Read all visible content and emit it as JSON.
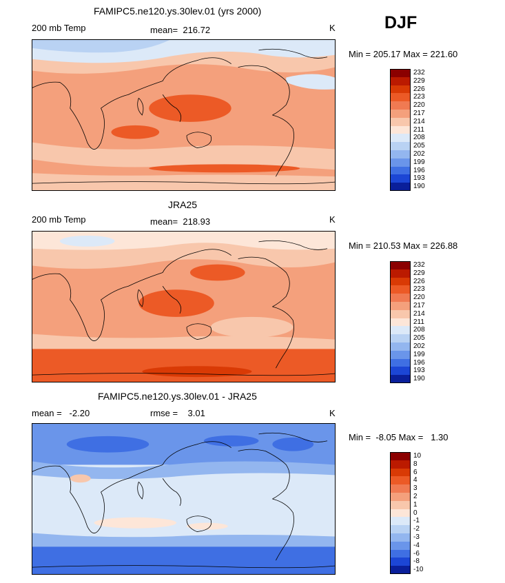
{
  "season": "DJF",
  "panels": [
    {
      "title": "FAMIPC5.ne120.ys.30lev.01 (yrs 2000)",
      "left_label": "200 mb Temp",
      "center_label": "mean=  216.72",
      "units": "K",
      "minmax": "Min = 205.17 Max = 221.60",
      "colorbar": {
        "labels": [
          "232",
          "229",
          "226",
          "223",
          "220",
          "217",
          "214",
          "211",
          "208",
          "205",
          "202",
          "199",
          "196",
          "193",
          "190"
        ],
        "colors": [
          "#8b0000",
          "#bb1a00",
          "#d93a05",
          "#ec5a26",
          "#f07a52",
          "#f4a07c",
          "#f8c7ac",
          "#fde6d8",
          "#dce9f8",
          "#b9d2f3",
          "#93b6ef",
          "#6a95ea",
          "#3f6fe3",
          "#1c46d5",
          "#0a1f9a"
        ]
      }
    },
    {
      "title": "JRA25",
      "left_label": "200 mb Temp",
      "center_label": "mean=  218.93",
      "units": "K",
      "minmax": "Min = 210.53 Max = 226.88",
      "colorbar": {
        "labels": [
          "232",
          "229",
          "226",
          "223",
          "220",
          "217",
          "214",
          "211",
          "208",
          "205",
          "202",
          "199",
          "196",
          "193",
          "190"
        ],
        "colors": [
          "#8b0000",
          "#bb1a00",
          "#d93a05",
          "#ec5a26",
          "#f07a52",
          "#f4a07c",
          "#f8c7ac",
          "#fde6d8",
          "#dce9f8",
          "#b9d2f3",
          "#93b6ef",
          "#6a95ea",
          "#3f6fe3",
          "#1c46d5",
          "#0a1f9a"
        ]
      }
    },
    {
      "title": "FAMIPC5.ne120.ys.30lev.01 - JRA25",
      "left_label": "mean =   -2.20",
      "center_label": "rmse =    3.01",
      "units": "K",
      "minmax": "Min =  -8.05 Max =   1.30",
      "colorbar": {
        "labels": [
          "10",
          "8",
          "6",
          "4",
          "3",
          "2",
          "1",
          "0",
          "-1",
          "-2",
          "-3",
          "-4",
          "-6",
          "-8",
          "-10"
        ],
        "colors": [
          "#8b0000",
          "#bb1a00",
          "#d93a05",
          "#ec5a26",
          "#f07a52",
          "#f4a07c",
          "#f8c7ac",
          "#fde6d8",
          "#dce9f8",
          "#b9d2f3",
          "#93b6ef",
          "#6a95ea",
          "#3f6fe3",
          "#1c46d5",
          "#0a1f9a"
        ]
      }
    }
  ]
}
